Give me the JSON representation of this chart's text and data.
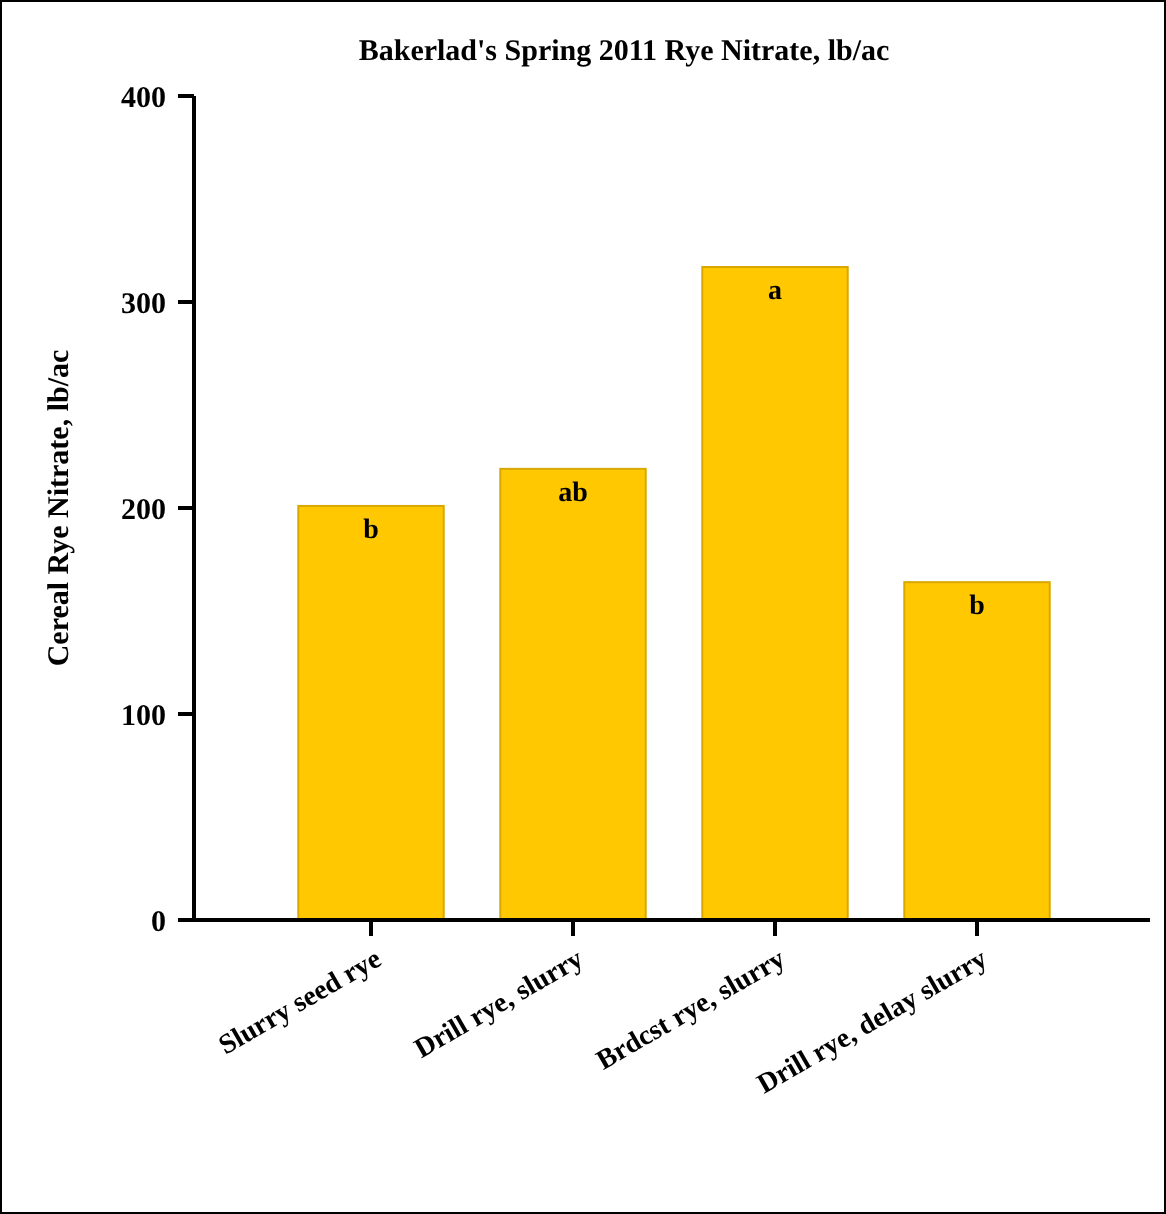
{
  "chart_data": {
    "type": "bar",
    "title": "Bakerlad's Spring 2011 Rye Nitrate, lb/ac",
    "ylabel": "Cereal Rye Nitrate, lb/ac",
    "categories": [
      "Slurry seed rye",
      "Drill rye, slurry",
      "Brdcst rye, slurry",
      "Drill rye, delay slurry"
    ],
    "values": [
      201,
      219,
      317,
      164
    ],
    "color": "#ffc800",
    "ylim": [
      0,
      400
    ],
    "yticks": [
      0,
      100,
      200,
      300,
      400
    ],
    "grid": false,
    "annotations": [
      {
        "text": "b",
        "x": "Slurry seed rye",
        "y": 201
      },
      {
        "text": "ab",
        "x": "Drill rye, slurry",
        "y": 219
      },
      {
        "text": "a",
        "x": "Brdcst rye, slurry",
        "y": 317
      },
      {
        "text": "b",
        "x": "Drill rye, delay slurry",
        "y": 164
      }
    ]
  }
}
